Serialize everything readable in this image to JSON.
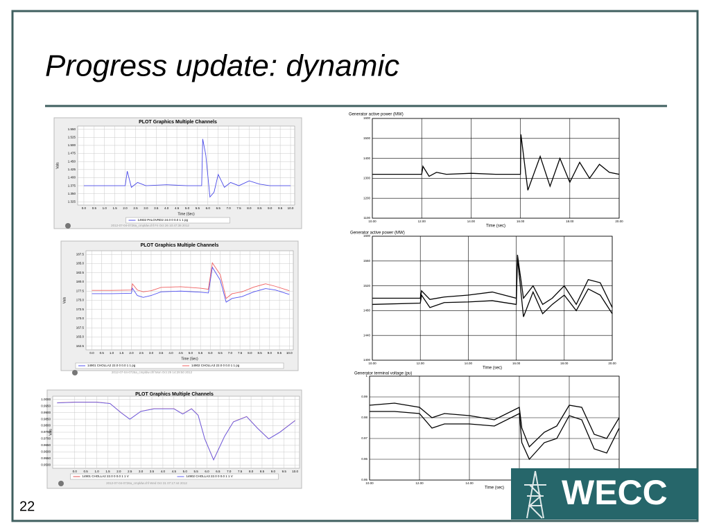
{
  "slide": {
    "title": "Progress update: dynamic",
    "page_number": "22",
    "logo": "WECC"
  },
  "chart_data": [
    {
      "type": "line",
      "title": "PLOT Graphics Multiple Channels",
      "xlabel": "Time (Sec)",
      "ylabel": "Vals",
      "footer": "2012-07-04-0726a_cmpldw.chf   Fri Oct 26 10:47:38 2012",
      "xlim": [
        -0.3,
        10.2
      ],
      "ylim": [
        1.315,
        1.56
      ],
      "xticks": [
        {
          "value": 0,
          "label": "0.0"
        },
        0.5,
        {
          "value": 1,
          "label": "1.0"
        },
        1.5,
        {
          "value": 2,
          "label": "2.0"
        },
        2.5,
        {
          "value": 3,
          "label": "3.0"
        },
        3.5,
        {
          "value": 4,
          "label": "4.0"
        },
        4.5,
        {
          "value": 5,
          "label": "5.0"
        },
        5.5,
        {
          "value": 6,
          "label": "6.0"
        },
        6.5,
        {
          "value": 7,
          "label": "7.0"
        },
        7.5,
        {
          "value": 8,
          "label": "8.0"
        },
        8.5,
        {
          "value": 9,
          "label": "9.0"
        },
        9.5,
        {
          "value": 10,
          "label": "10.0"
        }
      ],
      "yticks": [
        {
          "value": 1.55,
          "label": "1.550"
        },
        {
          "value": 1.525,
          "label": "1.525"
        },
        {
          "value": 1.5,
          "label": "1.500"
        },
        {
          "value": 1.475,
          "label": "1.475"
        },
        {
          "value": 1.45,
          "label": "1.450"
        },
        {
          "value": 1.425,
          "label": "1.425"
        },
        {
          "value": 1.4,
          "label": "1.400"
        },
        {
          "value": 1.375,
          "label": "1.375"
        },
        {
          "value": 1.35,
          "label": "1.350"
        },
        {
          "value": 1.325,
          "label": "1.325"
        }
      ],
      "series": [
        {
          "name": "14932 PALOVRD2 24.0  0        0.0   1   1   pg",
          "color": "#4a4ae8",
          "x": [
            0,
            1,
            2,
            2.1,
            2.3,
            2.6,
            3,
            4,
            5,
            5.6,
            5.7,
            5.75,
            5.9,
            6.1,
            6.3,
            6.5,
            6.8,
            7.1,
            7.5,
            8,
            8.5,
            9,
            10
          ],
          "values": [
            1.375,
            1.375,
            1.375,
            1.42,
            1.37,
            1.385,
            1.375,
            1.378,
            1.375,
            1.375,
            1.375,
            1.52,
            1.47,
            1.34,
            1.355,
            1.41,
            1.37,
            1.385,
            1.375,
            1.39,
            1.38,
            1.375,
            1.375
          ]
        }
      ]
    },
    {
      "type": "line",
      "title": "PLOT Graphics Multiple Channels",
      "xlabel": "Time (Sec)",
      "ylabel": "Vals",
      "footer": "2012-07-04-0726a_cmpldw.chf   Mon Oct 29 14:29:50 2012",
      "xlim": [
        -0.3,
        10.2
      ],
      "ylim": [
        161.5,
        188.5
      ],
      "xticks": [
        {
          "value": 0,
          "label": "0.0"
        },
        0.5,
        {
          "value": 1,
          "label": "1.0"
        },
        1.5,
        {
          "value": 2,
          "label": "2.0"
        },
        2.5,
        {
          "value": 3,
          "label": "3.0"
        },
        3.5,
        {
          "value": 4,
          "label": "4.0"
        },
        4.5,
        {
          "value": 5,
          "label": "5.0"
        },
        5.5,
        {
          "value": 6,
          "label": "6.0"
        },
        6.5,
        {
          "value": 7,
          "label": "7.0"
        },
        7.5,
        {
          "value": 8,
          "label": "8.0"
        },
        8.5,
        {
          "value": 9,
          "label": "9.0"
        },
        9.5,
        {
          "value": 10,
          "label": "10.0"
        }
      ],
      "yticks": [
        187.5,
        {
          "value": 185,
          "label": "185.0"
        },
        182.5,
        {
          "value": 180,
          "label": "180.0"
        },
        177.5,
        {
          "value": 175,
          "label": "175.0"
        },
        172.5,
        {
          "value": 170,
          "label": "170.0"
        },
        167.5,
        {
          "value": 165,
          "label": "165.0"
        },
        162.5
      ],
      "series": [
        {
          "name": "14901 CHOLLA2 22.0  0        0.0   1   1   pg",
          "color": "#5050f0",
          "x": [
            0,
            1,
            2,
            2.05,
            2.3,
            2.6,
            3,
            3.5,
            4.5,
            5.5,
            5.9,
            6.1,
            6.5,
            6.8,
            7.1,
            7.6,
            8.2,
            8.8,
            9.3,
            10
          ],
          "values": [
            176.8,
            176.8,
            176.9,
            178.3,
            176.3,
            175.8,
            176.3,
            177.3,
            177.5,
            177.2,
            177,
            184,
            180.5,
            174.5,
            175.5,
            176,
            177.3,
            178.2,
            177.8,
            176.6
          ]
        },
        {
          "name": "14902 CHOLLA3 22.0  0        0.0   1   1   pg",
          "color": "#f06060",
          "x": [
            0,
            1,
            2,
            2.05,
            2.3,
            2.6,
            3,
            3.5,
            4.5,
            5.5,
            5.9,
            6.1,
            6.5,
            6.8,
            7.1,
            7.6,
            8.2,
            8.8,
            9.3,
            10
          ],
          "values": [
            177.7,
            177.7,
            177.8,
            179.5,
            177.8,
            177.3,
            177.6,
            178.5,
            178.7,
            178.3,
            178,
            185.2,
            182,
            175.5,
            176.8,
            177.3,
            178.6,
            179.5,
            178.8,
            177.6
          ]
        }
      ]
    },
    {
      "type": "line",
      "title": "PLOT Graphics Multiple Channels",
      "xlabel": "Time (Sec)",
      "ylabel": "Vals",
      "footer": "2012-07-04-0726a_cmpldw.chf   Wed Oct 31 07:17:44 2012",
      "xlim": [
        -1,
        10.2
      ],
      "ylim": [
        0.9475,
        1.0025
      ],
      "xticks": [
        {
          "value": 0,
          "label": "0.0"
        },
        0.5,
        {
          "value": 1,
          "label": "1.0"
        },
        1.5,
        {
          "value": 2,
          "label": "2.0"
        },
        2.5,
        {
          "value": 3,
          "label": "3.0"
        },
        3.5,
        {
          "value": 4,
          "label": "4.0"
        },
        4.5,
        {
          "value": 5,
          "label": "5.0"
        },
        5.5,
        {
          "value": 6,
          "label": "6.0"
        },
        6.5,
        {
          "value": 7,
          "label": "7.0"
        },
        7.5,
        {
          "value": 8,
          "label": "8.0"
        },
        8.5,
        {
          "value": 9,
          "label": "9.0"
        },
        9.5,
        {
          "value": 10,
          "label": "10.0"
        }
      ],
      "yticks": [
        {
          "value": 1,
          "label": "1.0000"
        },
        {
          "value": 0.995,
          "label": "0.9950"
        },
        {
          "value": 0.99,
          "label": "0.9900"
        },
        {
          "value": 0.985,
          "label": "0.9850"
        },
        {
          "value": 0.98,
          "label": "0.9800"
        },
        {
          "value": 0.975,
          "label": "0.9750"
        },
        {
          "value": 0.97,
          "label": "0.9700"
        },
        {
          "value": 0.965,
          "label": "0.9650"
        },
        {
          "value": 0.96,
          "label": "0.9600"
        },
        {
          "value": 0.955,
          "label": "0.9550"
        },
        {
          "value": 0.95,
          "label": "0.9500"
        }
      ],
      "series": [
        {
          "name": "14901 CHOLLA2 22.0  0   0.0  1  1  V",
          "color": "#e05050",
          "x": [
            -0.8,
            0,
            1,
            1.6,
            2.1,
            2.5,
            3,
            3.6,
            4.5,
            4.9,
            5.3,
            5.6,
            5.9,
            6.3,
            6.8,
            7.2,
            7.8,
            8.3,
            8.8,
            9.3,
            10
          ],
          "values": [
            0.9975,
            0.998,
            0.998,
            0.997,
            0.99,
            0.985,
            0.991,
            0.993,
            0.993,
            0.989,
            0.993,
            0.988,
            0.97,
            0.954,
            0.972,
            0.983,
            0.987,
            0.978,
            0.97,
            0.975,
            0.984
          ]
        },
        {
          "name": "14902 CHOLLA3 22.0  0   0.0  1  1  V",
          "color": "#6060f0",
          "x": [
            -0.8,
            0,
            1,
            1.6,
            2.1,
            2.5,
            3,
            3.6,
            4.5,
            4.9,
            5.3,
            5.6,
            5.9,
            6.3,
            6.8,
            7.2,
            7.8,
            8.3,
            8.8,
            9.3,
            10
          ],
          "values": [
            0.9974,
            0.9979,
            0.9979,
            0.9969,
            0.9899,
            0.9849,
            0.9909,
            0.9929,
            0.9929,
            0.9889,
            0.9929,
            0.9879,
            0.9699,
            0.9539,
            0.9719,
            0.9829,
            0.9869,
            0.9779,
            0.9699,
            0.9749,
            0.9839
          ]
        }
      ]
    },
    {
      "type": "line",
      "title": "Generator active power (MW)",
      "xlabel": "Time (sec)",
      "xlim": [
        10,
        20
      ],
      "ylim": [
        1100,
        1600
      ],
      "xticks": [
        {
          "value": 10,
          "label": "10.00"
        },
        {
          "value": 12,
          "label": "12.00"
        },
        {
          "value": 14,
          "label": "14.00"
        },
        {
          "value": 16,
          "label": "16.00"
        },
        {
          "value": 18,
          "label": "18.00"
        },
        {
          "value": 20,
          "label": "20.00"
        }
      ],
      "yticks": [
        1600,
        1500,
        1400,
        1300,
        1200,
        1100
      ],
      "series": [
        {
          "color": "#000000",
          "x": [
            10,
            12,
            12.05,
            12.3,
            12.6,
            13,
            14,
            15,
            16,
            16.02,
            16.3,
            16.8,
            17.2,
            17.6,
            18,
            18.4,
            18.8,
            19.2,
            19.6,
            20
          ],
          "values": [
            1320,
            1320,
            1360,
            1310,
            1330,
            1320,
            1325,
            1320,
            1320,
            1520,
            1240,
            1410,
            1260,
            1400,
            1280,
            1380,
            1300,
            1370,
            1330,
            1320
          ]
        }
      ]
    },
    {
      "type": "line",
      "title": "Generator active power (MW)",
      "xlabel": "Time (sec)",
      "xlim": [
        10,
        20
      ],
      "ylim": [
        1400,
        1600
      ],
      "xticks": [
        {
          "value": 10,
          "label": "10.00"
        },
        {
          "value": 12,
          "label": "12.00"
        },
        {
          "value": 14,
          "label": "14.00"
        },
        {
          "value": 16,
          "label": "16.00"
        },
        {
          "value": 18,
          "label": "18.00"
        },
        {
          "value": 20,
          "label": "20.00"
        }
      ],
      "yticks": [
        1600,
        1560,
        1520,
        1480,
        1440,
        1400
      ],
      "series": [
        {
          "color": "#000000",
          "x": [
            10,
            12,
            12.05,
            12.4,
            13,
            14,
            15,
            16,
            16.05,
            16.3,
            16.7,
            17.1,
            17.5,
            18,
            18.5,
            19,
            19.5,
            20
          ],
          "values": [
            1500,
            1500,
            1512,
            1498,
            1502,
            1505,
            1510,
            1500,
            1570,
            1500,
            1520,
            1490,
            1500,
            1520,
            1490,
            1530,
            1525,
            1485
          ]
        },
        {
          "color": "#000000",
          "x": [
            10,
            12,
            12.05,
            12.4,
            13,
            14,
            15,
            16,
            16.05,
            16.3,
            16.7,
            17.1,
            17.5,
            18,
            18.5,
            19,
            19.5,
            20
          ],
          "values": [
            1490,
            1492,
            1505,
            1485,
            1493,
            1494,
            1496,
            1490,
            1565,
            1470,
            1510,
            1475,
            1490,
            1505,
            1480,
            1515,
            1505,
            1475
          ]
        }
      ]
    },
    {
      "type": "line",
      "title": "Generator terminal voltage (pu)",
      "xlabel": "Time (sec)",
      "xlim": [
        10,
        20
      ],
      "ylim": [
        0.95,
        1
      ],
      "xticks": [
        {
          "value": 10,
          "label": "10.00"
        },
        {
          "value": 12,
          "label": "12.00"
        },
        {
          "value": 14,
          "label": "14.00"
        },
        {
          "value": 16,
          "label": "16.00"
        },
        {
          "value": 18,
          "label": "18.00"
        },
        {
          "value": 20,
          "label": "20.00"
        }
      ],
      "yticks": [
        1,
        0.99,
        0.98,
        0.97,
        0.96,
        0.95
      ],
      "series": [
        {
          "color": "#000000",
          "x": [
            10,
            11,
            12,
            12.5,
            13,
            14,
            15,
            16,
            16.1,
            16.4,
            17,
            17.5,
            18,
            18.5,
            19,
            19.5,
            20
          ],
          "values": [
            0.986,
            0.987,
            0.985,
            0.98,
            0.982,
            0.981,
            0.979,
            0.985,
            0.975,
            0.966,
            0.973,
            0.976,
            0.986,
            0.985,
            0.972,
            0.97,
            0.98
          ]
        },
        {
          "color": "#000000",
          "x": [
            10,
            11,
            12,
            12.5,
            13,
            14,
            15,
            16,
            16.1,
            16.4,
            17,
            17.5,
            18,
            18.5,
            19,
            19.5,
            20
          ],
          "values": [
            0.983,
            0.983,
            0.982,
            0.975,
            0.977,
            0.977,
            0.976,
            0.982,
            0.968,
            0.96,
            0.968,
            0.97,
            0.981,
            0.979,
            0.965,
            0.963,
            0.975
          ]
        }
      ]
    }
  ]
}
